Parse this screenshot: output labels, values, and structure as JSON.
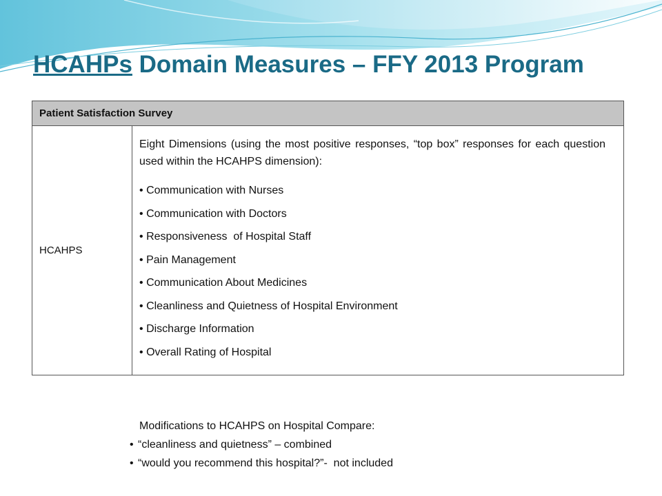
{
  "slide": {
    "title_underlined": "HCAHPs",
    "title_rest": " Domain Measures – FFY 2013 Program",
    "accent_color": "#1a6a86"
  },
  "table": {
    "header": "Patient Satisfaction Survey",
    "row_label": "HCAHPS",
    "intro": "Eight Dimensions (using the most positive responses, “top box” responses for each question used within the HCAHPS dimension):",
    "bullet_char": "•",
    "items": [
      "Communication with Nurses",
      "Communication with Doctors",
      "Responsiveness  of Hospital Staff",
      "Pain Management",
      "Communication About Medicines",
      "Cleanliness and Quietness of Hospital Environment",
      "Discharge Information",
      "Overall Rating of Hospital"
    ]
  },
  "modifications": {
    "heading": "Modifications to HCAHPS on Hospital Compare:",
    "items": [
      "“cleanliness and quietness” – combined",
      "“would you recommend this hospital?”-  not included"
    ]
  }
}
